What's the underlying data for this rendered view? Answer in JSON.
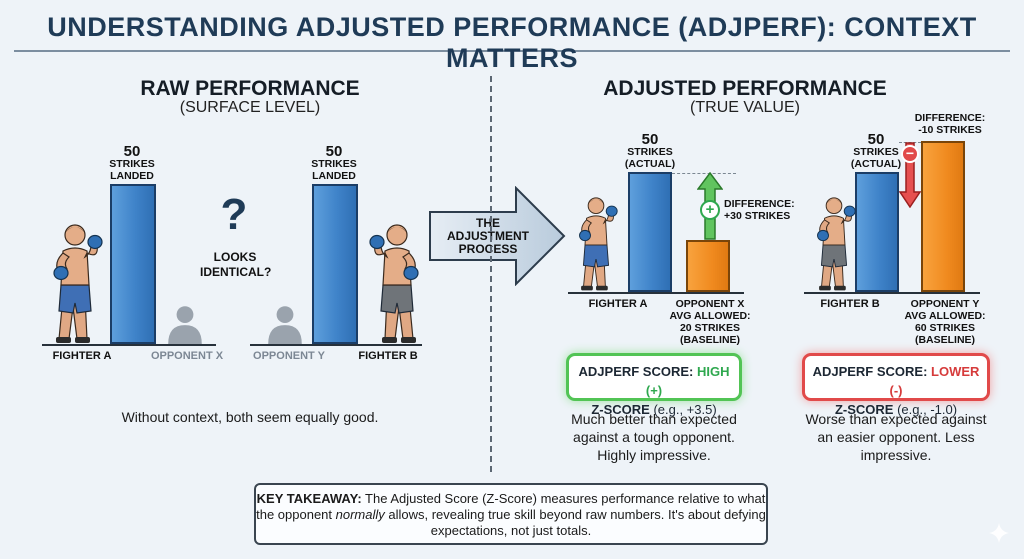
{
  "title": "UNDERSTANDING ADJUSTED PERFORMANCE (ADJPERF): CONTEXT MATTERS",
  "raw": {
    "heading": "RAW PERFORMANCE",
    "subheading": "(SURFACE LEVEL)",
    "question_mark": "?",
    "question": "LOOKS IDENTICAL?",
    "fighter_a": {
      "value": "50",
      "caption": "STRIKES LANDED",
      "label": "FIGHTER A"
    },
    "fighter_b": {
      "value": "50",
      "caption": "STRIKES LANDED",
      "label": "FIGHTER B"
    },
    "opponent_x": "OPPONENT X",
    "opponent_y": "OPPONENT Y",
    "note": "Without context, both seem equally good."
  },
  "process": {
    "label": "THE ADJUSTMENT PROCESS"
  },
  "adjusted": {
    "heading": "ADJUSTED PERFORMANCE",
    "subheading": "(TRUE VALUE)",
    "a": {
      "value": "50",
      "caption": "STRIKES (ACTUAL)",
      "difference": "DIFFERENCE: +30 STRIKES",
      "sign": "+",
      "fighter_label": "FIGHTER A",
      "opponent_label": "OPPONENT X AVG ALLOWED: 20 STRIKES (BASELINE)",
      "score_prefix": "ADJPERF SCORE: ",
      "score_value": "HIGH (+)",
      "zscore_prefix": "Z-SCORE ",
      "zscore_value": "(e.g., +3.5)",
      "note": "Much better than expected against a tough opponent. Highly impressive.",
      "accent": "#2fa84f"
    },
    "b": {
      "value": "50",
      "caption": "STRIKES (ACTUAL)",
      "difference": "DIFFERENCE: -10 STRIKES",
      "sign": "−",
      "fighter_label": "FIGHTER B",
      "opponent_label": "OPPONENT Y AVG ALLOWED: 60 STRIKES (BASELINE)",
      "score_prefix": "ADJPERF SCORE: ",
      "score_value": "LOWER (-)",
      "zscore_prefix": "Z-SCORE ",
      "zscore_value": "(e.g., -1.0)",
      "note": "Worse than expected against an easier opponent. Less impressive.",
      "accent": "#d63b3b"
    }
  },
  "takeaway": {
    "label": "KEY TAKEAWAY:",
    "text1": " The Adjusted Score (Z-Score) measures performance relative to what the opponent ",
    "emph": "normally",
    "text2": " allows, revealing true skill beyond raw numbers. It's about defying expectations, not just totals."
  },
  "icons": [
    "boxer-icon",
    "person-silhouette-icon",
    "question-mark-icon",
    "arrow-right-icon",
    "arrow-up-icon",
    "arrow-down-icon",
    "plus-icon",
    "minus-icon",
    "sparkle-icon"
  ]
}
